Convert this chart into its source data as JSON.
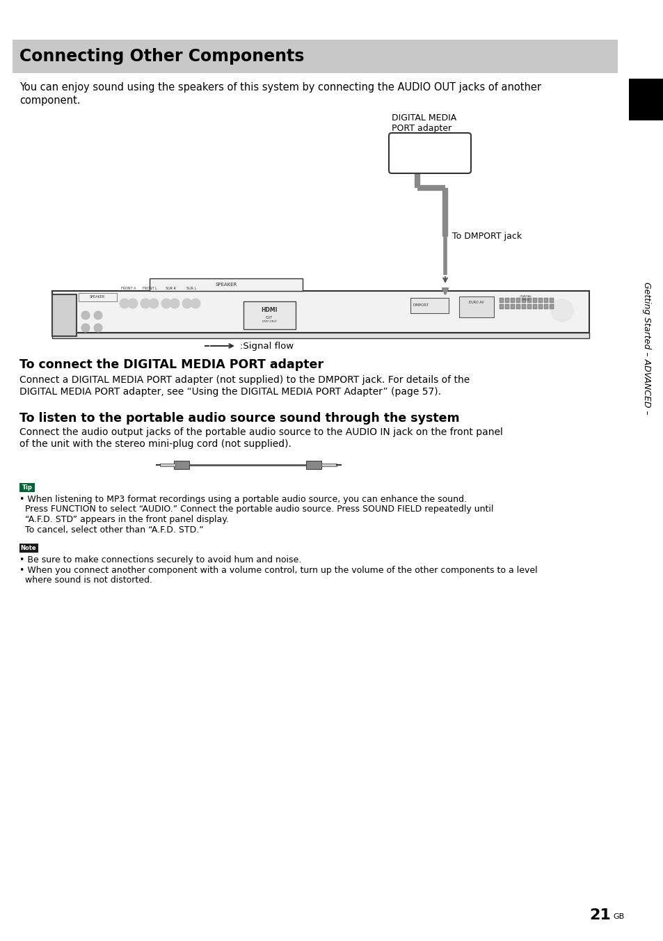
{
  "title": "Connecting Other Components",
  "title_bg": "#c8c8c8",
  "body_bg": "#ffffff",
  "intro_text_1": "You can enjoy sound using the speakers of this system by connecting the AUDIO OUT jacks of another",
  "intro_text_2": "component.",
  "section1_title": "To connect the DIGITAL MEDIA PORT adapter",
  "section1_body_1": "Connect a DIGITAL MEDIA PORT adapter (not supplied) to the DMPORT jack. For details of the",
  "section1_body_2": "DIGITAL MEDIA PORT adapter, see “Using the DIGITAL MEDIA PORT Adapter” (page 57).",
  "section2_title": "To listen to the portable audio source sound through the system",
  "section2_body_1": "Connect the audio output jacks of the portable audio source to the AUDIO IN jack on the front panel",
  "section2_body_2": "of the unit with the stereo mini-plug cord (not supplied).",
  "tip_label": "Tip",
  "tip_line1": "• When listening to MP3 format recordings using a portable audio source, you can enhance the sound.",
  "tip_line2": "  Press FUNCTION to select “AUDIO.” Connect the portable audio source. Press SOUND FIELD repeatedly until",
  "tip_line3": "  “A.F.D. STD” appears in the front panel display.",
  "tip_line4": "  To cancel, select other than “A.F.D. STD.”",
  "note_label": "Note",
  "note_line1": "• Be sure to make connections securely to avoid hum and noise.",
  "note_line2": "• When you connect another component with a volume control, turn up the volume of the other components to a level",
  "note_line3": "  where sound is not distorted.",
  "sidebar_text": "Getting Started – ADVANCED –",
  "page_num": "21",
  "page_suffix": "GB",
  "signal_flow_label": ":Signal flow",
  "dmport_label_1": "DIGITAL MEDIA",
  "dmport_label_2": "PORT adapter",
  "dmport_jack_label": "To DMPORT jack"
}
